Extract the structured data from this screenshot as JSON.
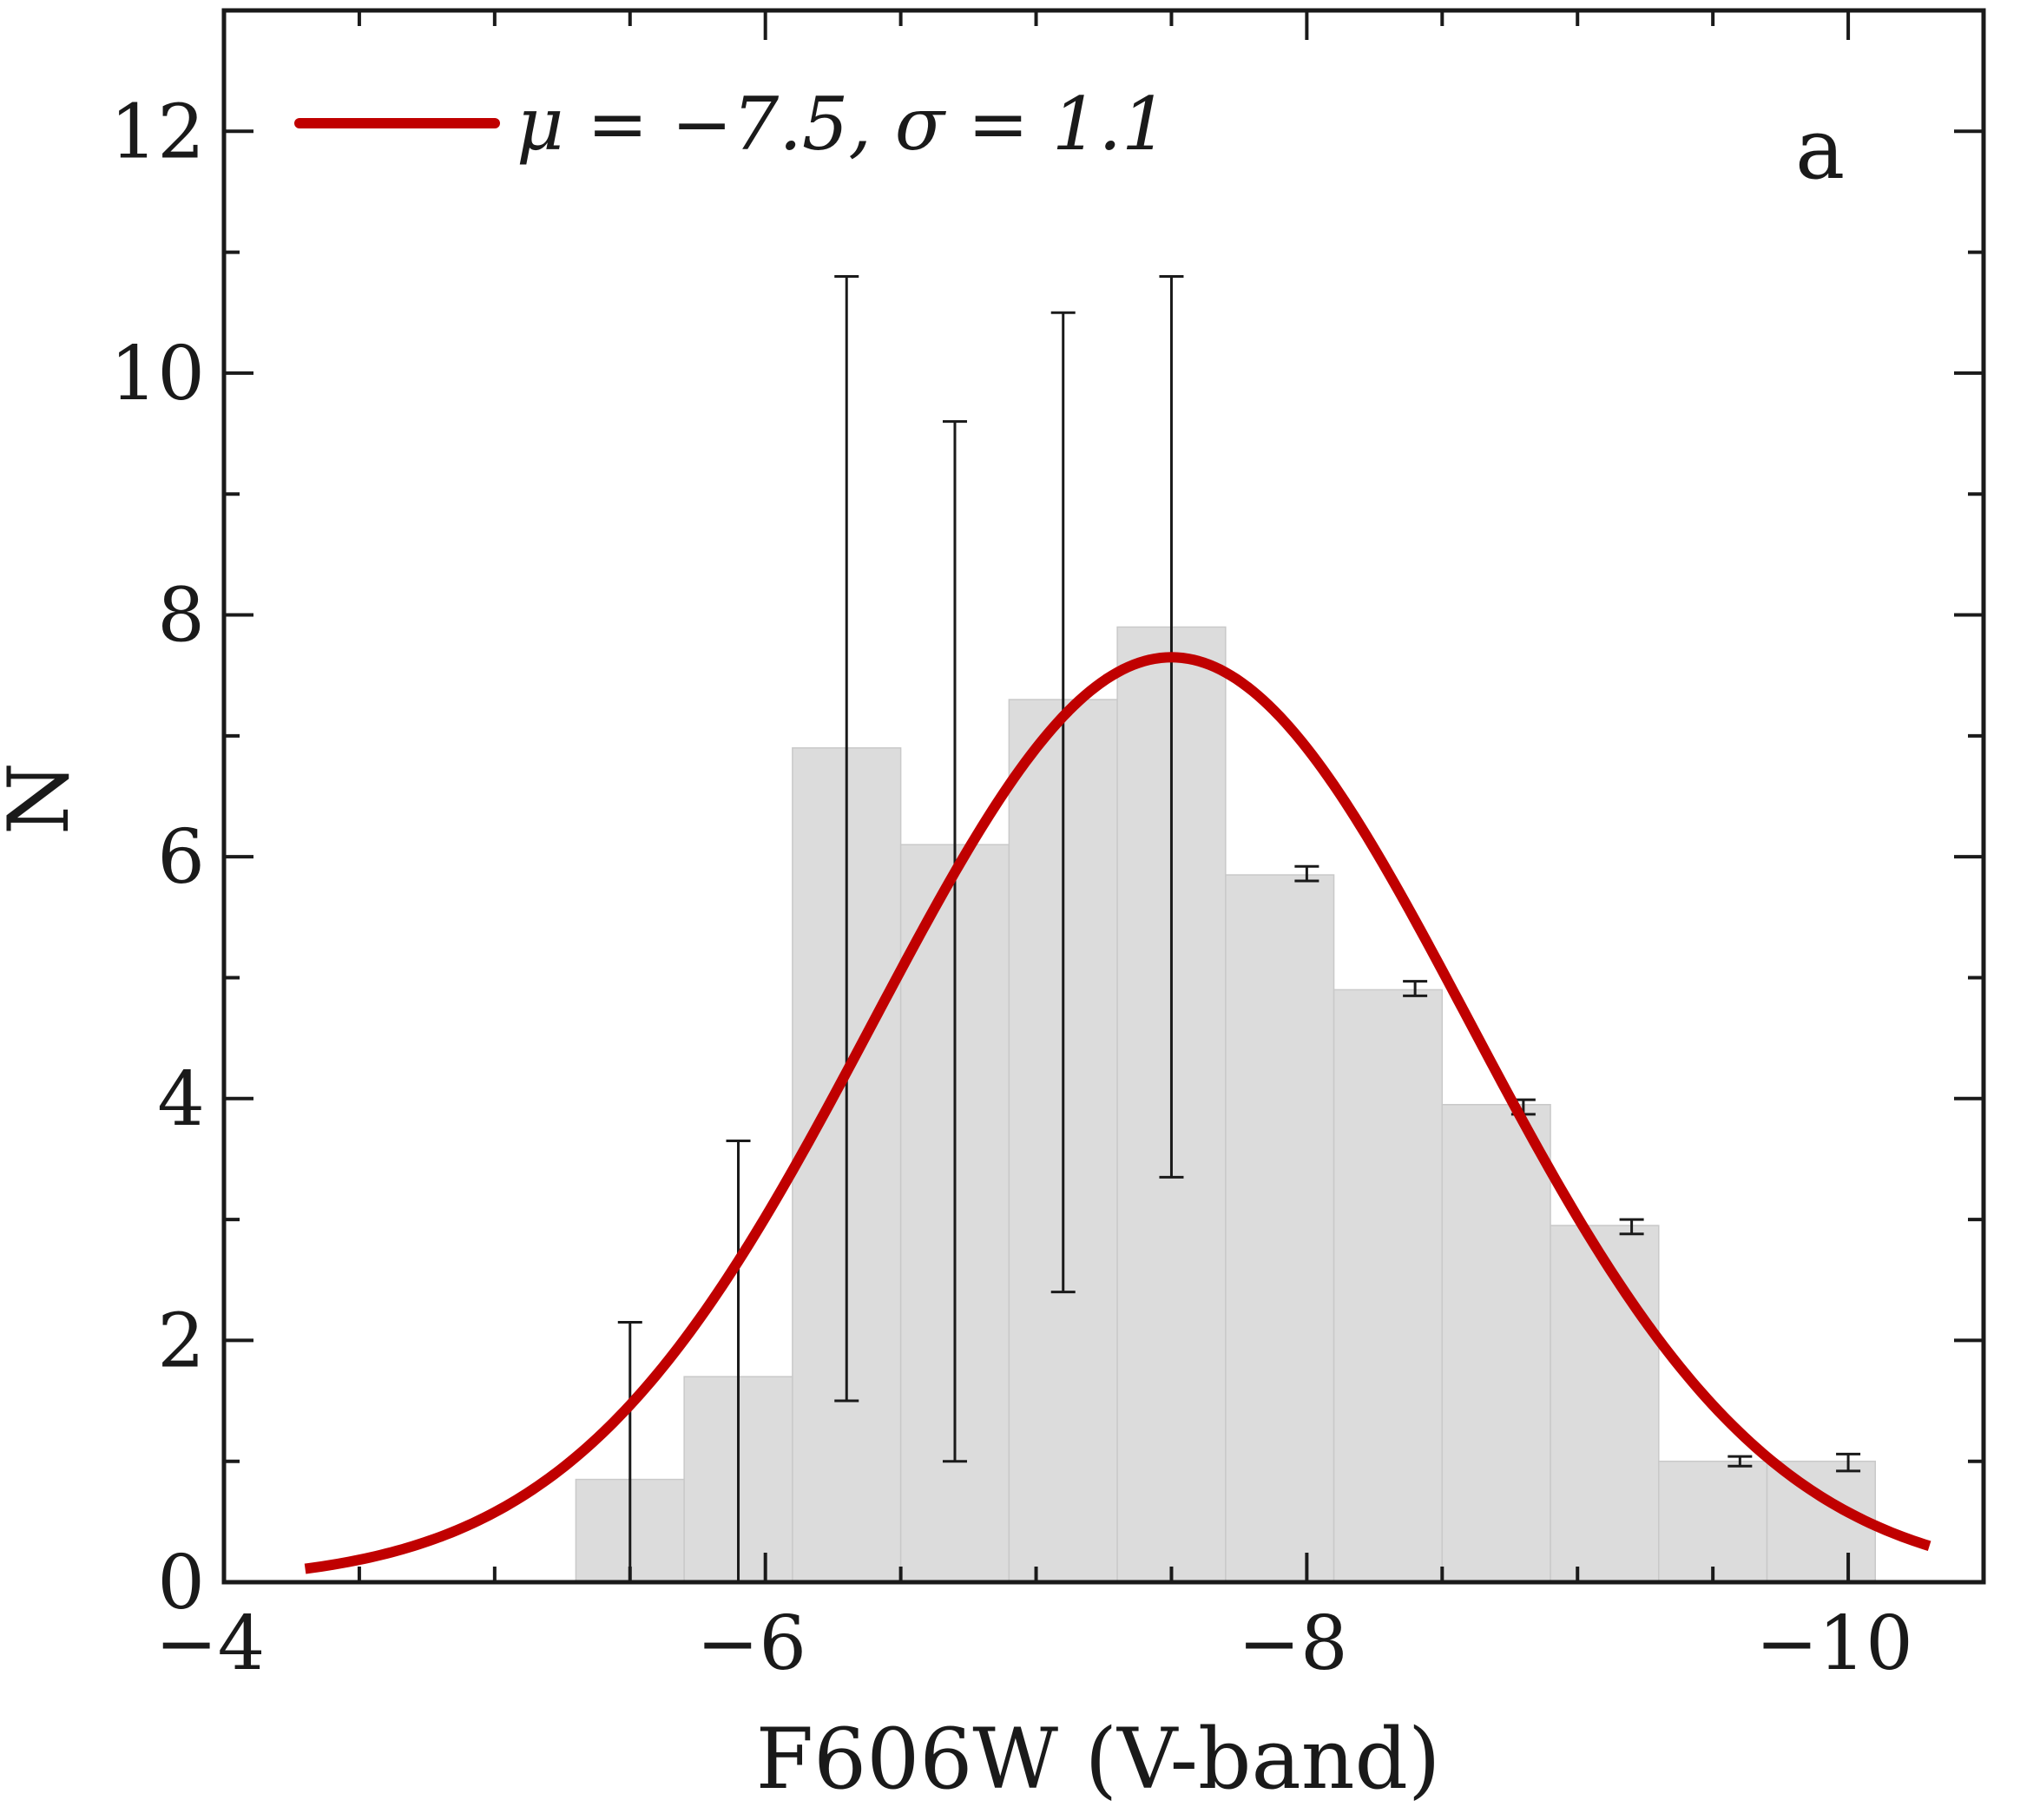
{
  "chart_data": {
    "type": "bar",
    "panel_label": "a",
    "xlabel": "F606W (V-band)",
    "ylabel": "N",
    "xlim": [
      -4,
      -10.5
    ],
    "ylim": [
      0,
      13
    ],
    "x_reversed": true,
    "xticks": [
      -4,
      -6,
      -8,
      -10
    ],
    "xtick_labels": [
      "−4",
      "−6",
      "−8",
      "−10"
    ],
    "yticks": [
      0,
      2,
      4,
      6,
      8,
      10,
      12
    ],
    "ytick_labels": [
      "0",
      "2",
      "4",
      "6",
      "8",
      "10",
      "12"
    ],
    "histogram": {
      "bin_edges": [
        -5.3,
        -5.7,
        -6.1,
        -6.5,
        -6.9,
        -7.3,
        -7.7,
        -8.1,
        -8.5,
        -8.9,
        -9.3,
        -9.7,
        -10.1
      ],
      "counts": [
        0.85,
        1.7,
        6.9,
        6.1,
        7.3,
        7.9,
        5.85,
        4.9,
        3.95,
        2.95,
        1.0,
        1.0
      ],
      "color": "#dcdcdc"
    },
    "error_bars": [
      {
        "x": -5.5,
        "low": 0.0,
        "high": 2.15
      },
      {
        "x": -5.9,
        "low": 0.0,
        "high": 3.65
      },
      {
        "x": -6.3,
        "low": 1.5,
        "high": 10.8
      },
      {
        "x": -6.7,
        "low": 1.0,
        "high": 9.6
      },
      {
        "x": -7.1,
        "low": 2.4,
        "high": 10.5
      },
      {
        "x": -7.5,
        "low": 3.35,
        "high": 10.8
      },
      {
        "x": -8.0,
        "low": 5.8,
        "high": 5.92
      },
      {
        "x": -8.4,
        "low": 4.85,
        "high": 4.97
      },
      {
        "x": -8.8,
        "low": 3.87,
        "high": 3.99
      },
      {
        "x": -9.2,
        "low": 2.88,
        "high": 3.0
      },
      {
        "x": -9.6,
        "low": 0.96,
        "high": 1.04
      },
      {
        "x": -10.0,
        "low": 0.92,
        "high": 1.06
      }
    ],
    "series": [
      {
        "type": "gaussian",
        "name": "μ = −7.5, σ = 1.1",
        "mu": -7.5,
        "sigma": 1.1,
        "amplitude": 7.65,
        "x_range": [
          -4.3,
          -10.3
        ],
        "color": "#c00000"
      }
    ],
    "legend_position": "top-left",
    "grid": false
  }
}
